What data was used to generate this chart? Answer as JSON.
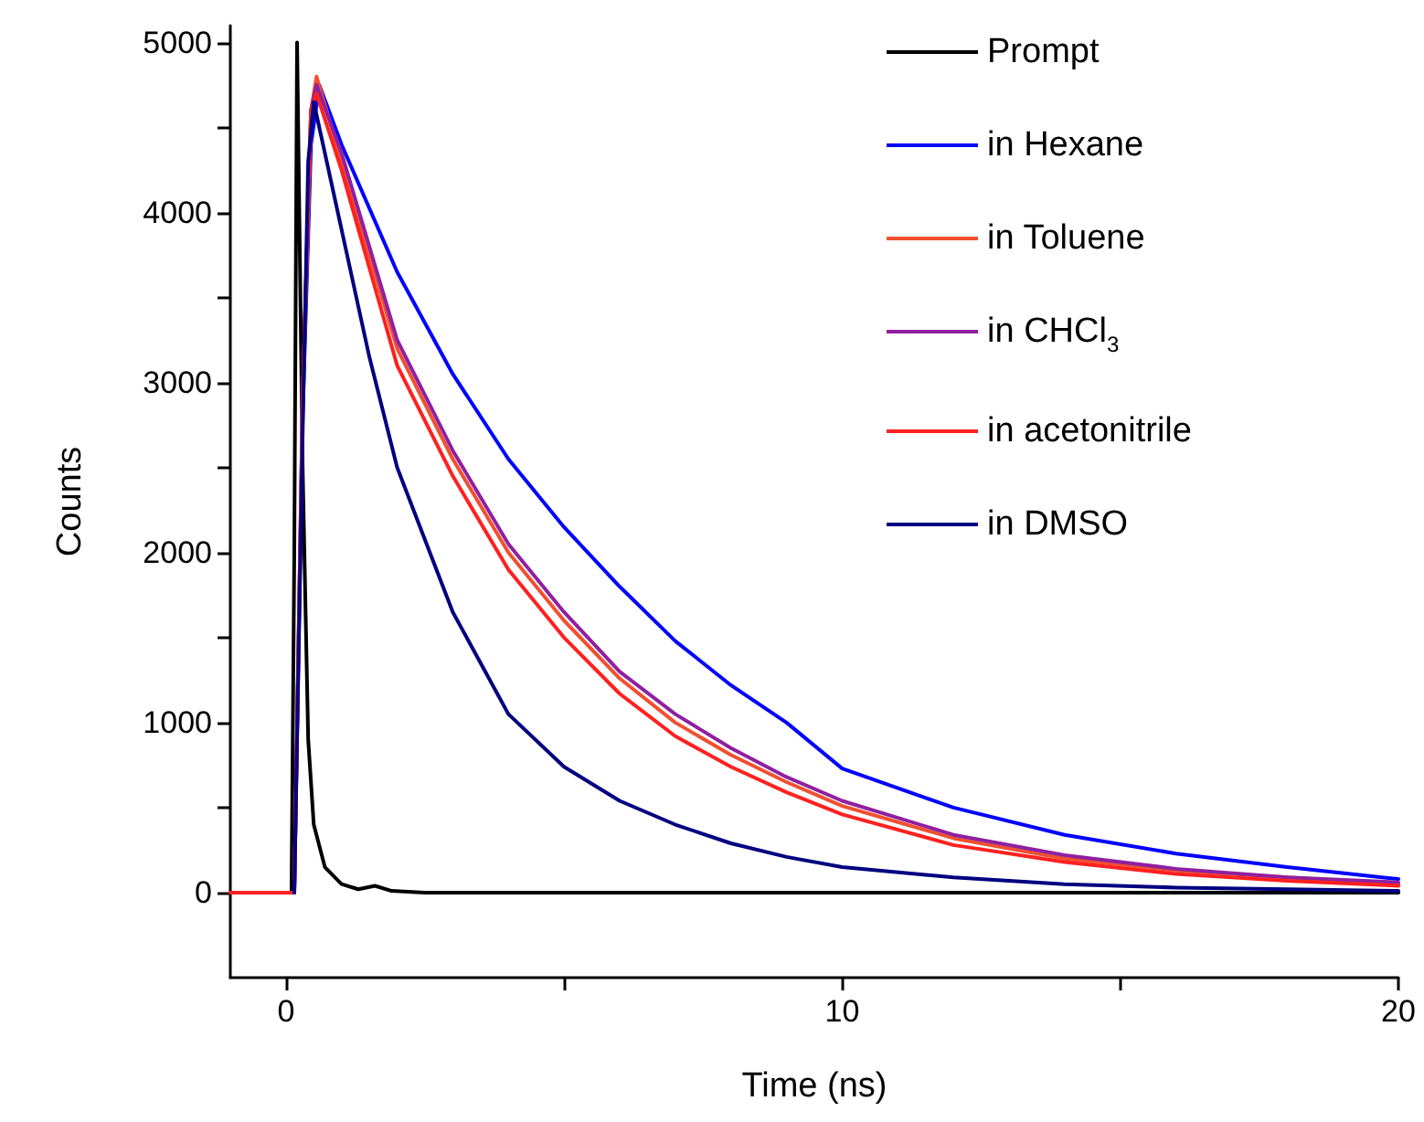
{
  "chart_data": {
    "type": "line",
    "xlabel": "Time (ns)",
    "ylabel": "Counts",
    "xlim": [
      -1,
      20
    ],
    "xticks": [
      0,
      {
        "value": 5,
        "label": null
      },
      10,
      {
        "value": 15,
        "label": null
      },
      20
    ],
    "ylim": [
      -500,
      5100
    ],
    "yticks": [
      0,
      {
        "value": 500,
        "label": null
      },
      1000,
      {
        "value": 1500,
        "label": null
      },
      2000,
      {
        "value": 2500,
        "label": null
      },
      3000,
      {
        "value": 3500,
        "label": null
      },
      4000,
      {
        "value": 4500,
        "label": null
      },
      5000
    ],
    "grid": false,
    "legend": "top right",
    "marker": "none",
    "line_style": "solid",
    "series": [
      {
        "name": "Prompt",
        "color": "#000000",
        "x": [
          0.1,
          0.15,
          0.2,
          0.3,
          0.4,
          0.5,
          0.7,
          1.0,
          1.3,
          1.6,
          1.9,
          2.5,
          20
        ],
        "values": [
          0,
          2000,
          5000,
          2500,
          900,
          400,
          150,
          50,
          20,
          40,
          10,
          0,
          0
        ]
      },
      {
        "name": "in Hexane",
        "color": "#0000ff",
        "x": [
          0.15,
          0.3,
          0.45,
          0.6,
          1,
          2,
          3,
          4,
          5,
          6,
          7,
          8,
          9,
          10,
          12,
          14,
          16,
          18,
          20
        ],
        "values": [
          0,
          2800,
          4400,
          4750,
          4400,
          3650,
          3050,
          2550,
          2150,
          1800,
          1480,
          1220,
          1000,
          730,
          500,
          340,
          230,
          150,
          80
        ]
      },
      {
        "name": "in Toluene",
        "color": "#f05030",
        "x": [
          0.15,
          0.3,
          0.45,
          0.55,
          1,
          2,
          3,
          4,
          5,
          6,
          7,
          8,
          9,
          10,
          12,
          14,
          16,
          18,
          20
        ],
        "values": [
          0,
          2900,
          4600,
          4800,
          4300,
          3200,
          2550,
          2000,
          1600,
          1260,
          1000,
          810,
          650,
          510,
          320,
          200,
          130,
          90,
          50
        ]
      },
      {
        "name": "in CHCl$_{3}$",
        "color": "#9020a0",
        "x": [
          0.15,
          0.3,
          0.45,
          0.55,
          1,
          2,
          3,
          4,
          5,
          6,
          7,
          8,
          9,
          10,
          12,
          14,
          16,
          18,
          20
        ],
        "values": [
          0,
          2900,
          4600,
          4750,
          4350,
          3250,
          2600,
          2050,
          1650,
          1300,
          1050,
          850,
          680,
          540,
          340,
          220,
          140,
          90,
          60
        ]
      },
      {
        "name": "in acetonitrile",
        "color": "#ff2020",
        "x": [
          -1,
          0,
          0.15,
          0.3,
          0.45,
          0.55,
          1,
          2,
          3,
          4,
          5,
          6,
          7,
          8,
          9,
          10,
          12,
          14,
          16,
          18,
          20
        ],
        "values": [
          0,
          0,
          0,
          2900,
          4600,
          4700,
          4250,
          3100,
          2450,
          1900,
          1500,
          1170,
          920,
          740,
          590,
          460,
          280,
          180,
          110,
          70,
          40
        ]
      },
      {
        "name": "in DMSO",
        "color": "#000080",
        "x": [
          0.15,
          0.3,
          0.4,
          0.5,
          1,
          1.5,
          2,
          3,
          4,
          5,
          6,
          7,
          8,
          9,
          10,
          12,
          14,
          16,
          18,
          20
        ],
        "values": [
          0,
          2700,
          4300,
          4650,
          3900,
          3150,
          2500,
          1650,
          1050,
          740,
          540,
          400,
          290,
          210,
          150,
          90,
          50,
          30,
          20,
          10
        ]
      }
    ]
  }
}
